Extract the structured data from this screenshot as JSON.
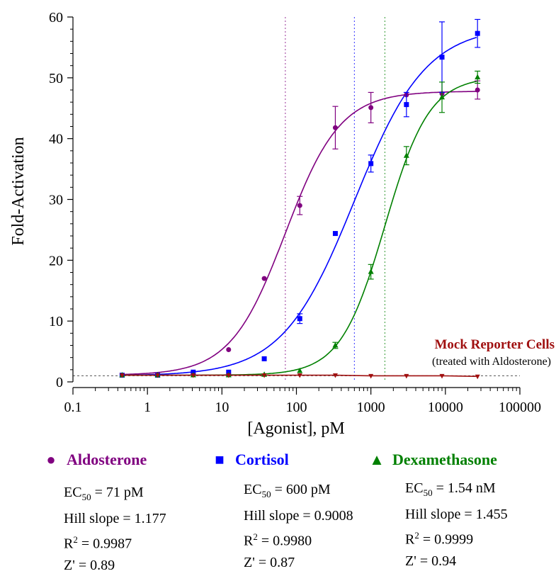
{
  "chart_data": {
    "type": "scatter",
    "xlabel": "[Agonist], pM",
    "ylabel": "Fold-Activation",
    "xscale": "log",
    "xlim": [
      0.1,
      100000
    ],
    "ylim": [
      0,
      60
    ],
    "x_ticks": [
      0.1,
      1,
      10,
      100,
      1000,
      10000,
      100000
    ],
    "x_tick_labels": [
      "0.1",
      "1",
      "10",
      "100",
      "1000",
      "10000",
      "100000"
    ],
    "y_ticks": [
      0,
      10,
      20,
      30,
      40,
      50,
      60
    ],
    "y_tick_labels": [
      "0",
      "10",
      "20",
      "30",
      "40",
      "50",
      "60"
    ],
    "grid": false,
    "baseline": 1,
    "series": [
      {
        "name": "Aldosterone",
        "color": "#800080",
        "marker": "circle",
        "x": [
          0.457,
          1.37,
          4.12,
          12.3,
          37,
          111,
          333,
          1000,
          3000,
          9000,
          27000
        ],
        "y": [
          1.1,
          1.1,
          1.3,
          5.3,
          17,
          29,
          41.8,
          45.1,
          47.2,
          47.4,
          48
        ],
        "err": [
          0,
          0,
          0,
          0,
          0,
          1.5,
          3.5,
          2.5,
          0,
          0,
          1.5
        ],
        "fit": {
          "bottom": 1.1,
          "top": 47.8,
          "ec50": 71,
          "hill": 1.177
        },
        "ec50_line": 71,
        "stats": {
          "ec50": "71 pM",
          "hill": "1.177",
          "r2": "0.9987",
          "z": "0.89"
        }
      },
      {
        "name": "Cortisol",
        "color": "#0000ff",
        "marker": "square",
        "x": [
          0.457,
          1.37,
          4.12,
          12.3,
          37,
          111,
          333,
          1000,
          3000,
          9000,
          27000
        ],
        "y": [
          1.1,
          1.1,
          1.6,
          1.6,
          3.8,
          10.4,
          24.4,
          35.9,
          45.6,
          53.4,
          57.3
        ],
        "err": [
          0,
          0,
          0,
          0,
          0,
          0.8,
          0,
          1.4,
          2.0,
          5.8,
          2.3
        ],
        "fit": {
          "bottom": 1.0,
          "top": 58.5,
          "ec50": 600,
          "hill": 0.9008
        },
        "ec50_line": 600,
        "stats": {
          "ec50": "600 pM",
          "hill": "0.9008",
          "r2": "0.9980",
          "z": "0.87"
        }
      },
      {
        "name": "Dexamethasone",
        "color": "#008000",
        "marker": "triangle",
        "x": [
          0.457,
          1.37,
          4.12,
          12.3,
          37,
          111,
          333,
          1000,
          3000,
          9000,
          27000
        ],
        "y": [
          1.1,
          1.1,
          1.1,
          1.1,
          1.2,
          1.8,
          6,
          18.1,
          37.2,
          46.8,
          50.1
        ],
        "err": [
          0,
          0,
          0,
          0,
          0,
          0,
          0.5,
          1.2,
          1.5,
          2.5,
          1.0
        ],
        "fit": {
          "bottom": 1.1,
          "top": 50.2,
          "ec50": 1540,
          "hill": 1.455
        },
        "ec50_line": 1540,
        "stats": {
          "ec50": "1.54 nM",
          "hill": "1.455",
          "r2": "0.9999",
          "z": "0.94"
        }
      },
      {
        "name": "Mock Reporter Cells",
        "color": "#a01010",
        "marker": "triangle-down",
        "x": [
          0.457,
          1.37,
          4.12,
          12.3,
          37,
          111,
          333,
          1000,
          3000,
          9000,
          27000
        ],
        "y": [
          1.1,
          1.1,
          1.1,
          1.1,
          1.1,
          1.1,
          1.1,
          1.0,
          1.0,
          1.0,
          0.9
        ]
      }
    ],
    "annotation": {
      "title": "Mock Reporter Cells",
      "subtitle": "(treated with Aldosterone)"
    },
    "stat_labels": {
      "ec_prefix": "EC",
      "ec_sub": "50",
      "hill_prefix": "Hill slope = ",
      "r_prefix": "R",
      "r_sup": "2",
      "z_prefix": "Z' = "
    }
  }
}
